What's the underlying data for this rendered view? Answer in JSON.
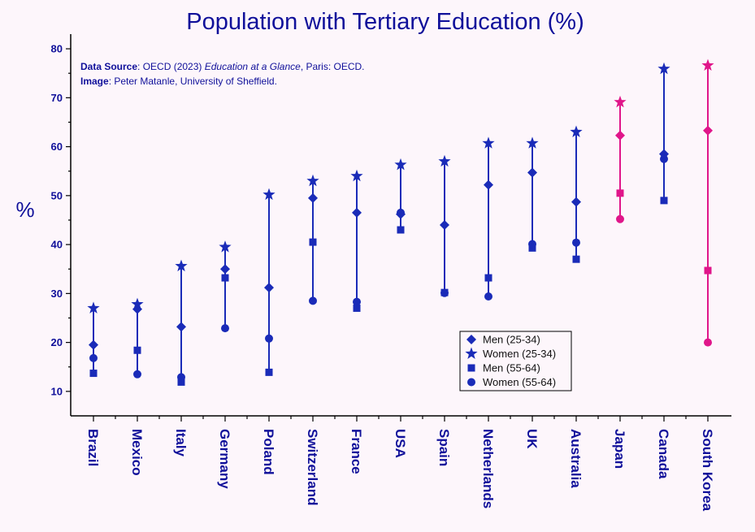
{
  "chart_data": {
    "type": "scatter",
    "title": "Population with Tertiary Education (%)",
    "xlabel": "",
    "ylabel": "%",
    "ylim": [
      5,
      83
    ],
    "yticks": [
      10,
      20,
      30,
      40,
      50,
      60,
      70,
      80
    ],
    "categories": [
      "Brazil",
      "Mexico",
      "Italy",
      "Germany",
      "Poland",
      "Switzerland",
      "France",
      "USA",
      "Spain",
      "Netherlands",
      "UK",
      "Australia",
      "Japan",
      "Canada",
      "South Korea"
    ],
    "highlighted": [
      "Japan",
      "South Korea"
    ],
    "series": [
      {
        "name": "Men (25-34)",
        "marker": "diamond",
        "values": [
          19.5,
          26.8,
          23.2,
          35.0,
          31.2,
          49.5,
          46.5,
          46.2,
          44.0,
          52.2,
          54.7,
          48.7,
          62.3,
          58.5,
          63.3
        ]
      },
      {
        "name": "Women (25-34)",
        "marker": "star",
        "values": [
          27.0,
          27.8,
          35.6,
          39.5,
          50.2,
          53.0,
          54.0,
          56.3,
          57.0,
          60.7,
          60.7,
          63.0,
          69.1,
          75.9,
          76.6
        ]
      },
      {
        "name": "Men (55-64)",
        "marker": "square",
        "values": [
          13.7,
          18.4,
          11.9,
          33.2,
          13.9,
          40.5,
          27.0,
          43.0,
          30.2,
          33.2,
          39.3,
          37.0,
          50.5,
          49.0,
          34.7
        ]
      },
      {
        "name": "Women (55-64)",
        "marker": "circle",
        "values": [
          16.8,
          13.5,
          12.9,
          22.9,
          20.8,
          28.5,
          28.3,
          46.5,
          30.1,
          29.4,
          40.1,
          40.4,
          45.2,
          57.5,
          20.0
        ]
      }
    ],
    "colors": {
      "default": "#1a2bb8",
      "highlight": "#e0168a",
      "axis": "#10109a"
    },
    "legend": {
      "placement": "bottom-right"
    }
  },
  "annotation": {
    "source_label": "Data Source",
    "source_sep": ": OECD (2023) ",
    "source_title": "Education at a Glance",
    "source_end": ", Paris: OECD.",
    "image_label": "Image",
    "image_text": ": Peter Matanle, University of Sheffield."
  }
}
